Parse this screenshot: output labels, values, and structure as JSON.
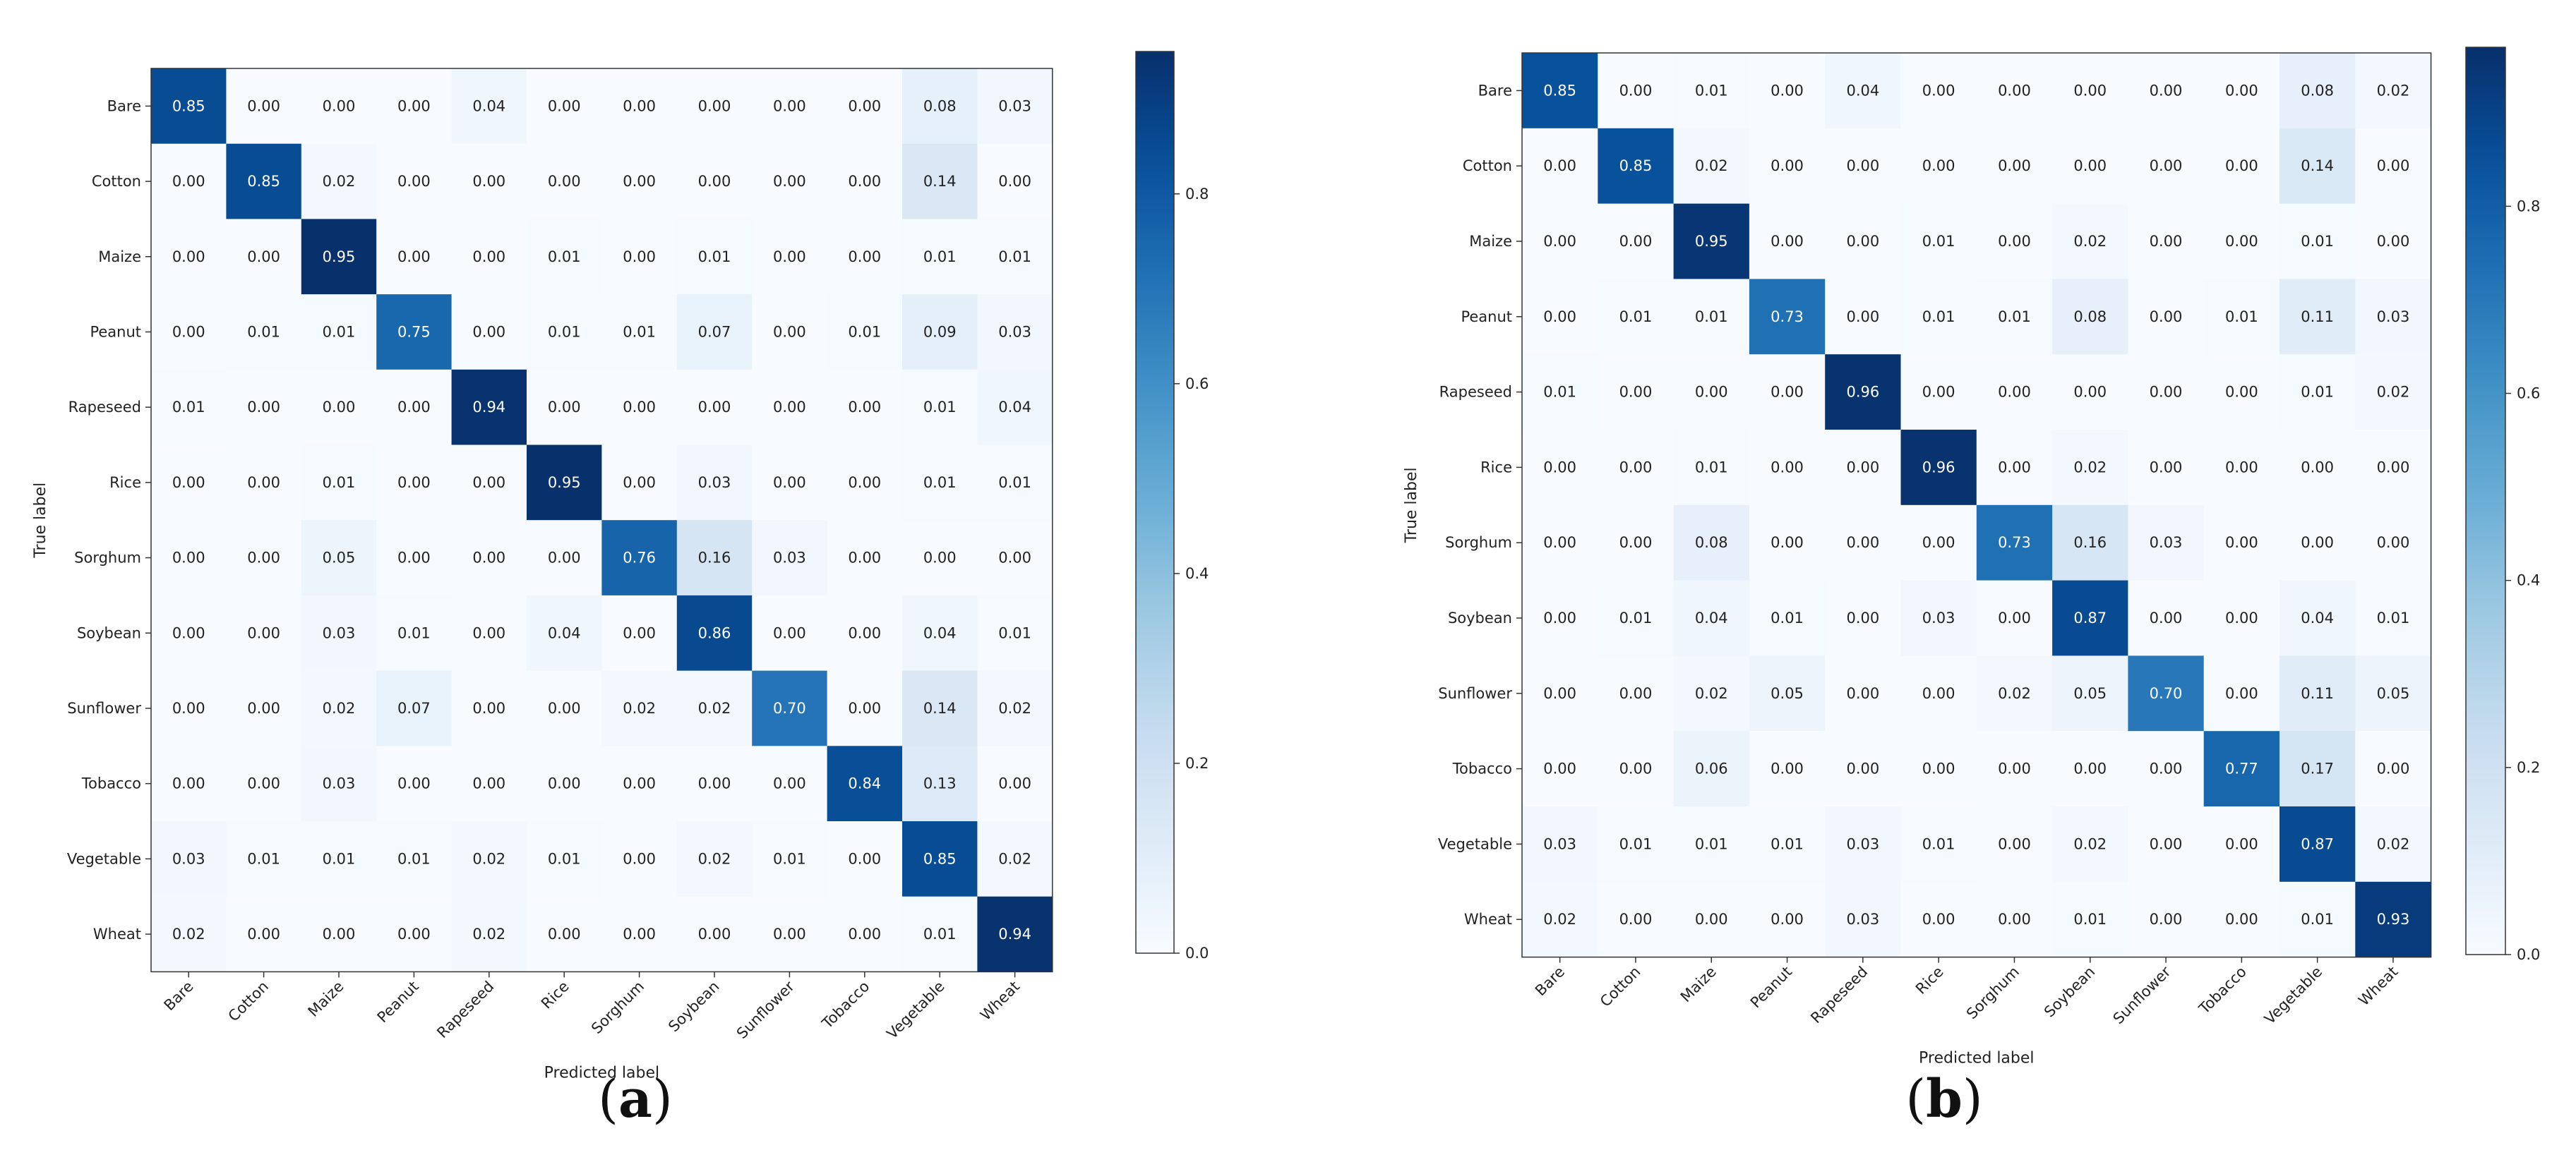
{
  "chart_data": [
    {
      "type": "heatmap",
      "panel_label": "(a)",
      "panel_letter": "a",
      "xlabel": "Predicted label",
      "ylabel": "True label",
      "categories": [
        "Bare",
        "Cotton",
        "Maize",
        "Peanut",
        "Rapeseed",
        "Rice",
        "Sorghum",
        "Soybean",
        "Sunflower",
        "Tobacco",
        "Vegetable",
        "Wheat"
      ],
      "matrix": [
        [
          0.85,
          0.0,
          0.0,
          0.0,
          0.04,
          0.0,
          0.0,
          0.0,
          0.0,
          0.0,
          0.08,
          0.03
        ],
        [
          0.0,
          0.85,
          0.02,
          0.0,
          0.0,
          0.0,
          0.0,
          0.0,
          0.0,
          0.0,
          0.14,
          0.0
        ],
        [
          0.0,
          0.0,
          0.95,
          0.0,
          0.0,
          0.01,
          0.0,
          0.01,
          0.0,
          0.0,
          0.01,
          0.01
        ],
        [
          0.0,
          0.01,
          0.01,
          0.75,
          0.0,
          0.01,
          0.01,
          0.07,
          0.0,
          0.01,
          0.09,
          0.03
        ],
        [
          0.01,
          0.0,
          0.0,
          0.0,
          0.94,
          0.0,
          0.0,
          0.0,
          0.0,
          0.0,
          0.01,
          0.04
        ],
        [
          0.0,
          0.0,
          0.01,
          0.0,
          0.0,
          0.95,
          0.0,
          0.03,
          0.0,
          0.0,
          0.01,
          0.01
        ],
        [
          0.0,
          0.0,
          0.05,
          0.0,
          0.0,
          0.0,
          0.76,
          0.16,
          0.03,
          0.0,
          0.0,
          0.0
        ],
        [
          0.0,
          0.0,
          0.03,
          0.01,
          0.0,
          0.04,
          0.0,
          0.86,
          0.0,
          0.0,
          0.04,
          0.01
        ],
        [
          0.0,
          0.0,
          0.02,
          0.07,
          0.0,
          0.0,
          0.02,
          0.02,
          0.7,
          0.0,
          0.14,
          0.02
        ],
        [
          0.0,
          0.0,
          0.03,
          0.0,
          0.0,
          0.0,
          0.0,
          0.0,
          0.0,
          0.84,
          0.13,
          0.0
        ],
        [
          0.03,
          0.01,
          0.01,
          0.01,
          0.02,
          0.01,
          0.0,
          0.02,
          0.01,
          0.0,
          0.85,
          0.02
        ],
        [
          0.02,
          0.0,
          0.0,
          0.0,
          0.02,
          0.0,
          0.0,
          0.0,
          0.0,
          0.0,
          0.01,
          0.94
        ]
      ],
      "colorbar": {
        "range": [
          0,
          0.95
        ],
        "ticks": [
          0.0,
          0.2,
          0.4,
          0.6,
          0.8
        ],
        "tick_labels": [
          "0.0",
          "0.2",
          "0.4",
          "0.6",
          "0.8"
        ],
        "colormap": "Blues"
      }
    },
    {
      "type": "heatmap",
      "panel_label": "(b)",
      "panel_letter": "b",
      "xlabel": "Predicted label",
      "ylabel": "True label",
      "categories": [
        "Bare",
        "Cotton",
        "Maize",
        "Peanut",
        "Rapeseed",
        "Rice",
        "Sorghum",
        "Soybean",
        "Sunflower",
        "Tobacco",
        "Vegetable",
        "Wheat"
      ],
      "matrix": [
        [
          0.85,
          0.0,
          0.01,
          0.0,
          0.04,
          0.0,
          0.0,
          0.0,
          0.0,
          0.0,
          0.08,
          0.02
        ],
        [
          0.0,
          0.85,
          0.02,
          0.0,
          0.0,
          0.0,
          0.0,
          0.0,
          0.0,
          0.0,
          0.14,
          0.0
        ],
        [
          0.0,
          0.0,
          0.95,
          0.0,
          0.0,
          0.01,
          0.0,
          0.02,
          0.0,
          0.0,
          0.01,
          0.0
        ],
        [
          0.0,
          0.01,
          0.01,
          0.73,
          0.0,
          0.01,
          0.01,
          0.08,
          0.0,
          0.01,
          0.11,
          0.03
        ],
        [
          0.01,
          0.0,
          0.0,
          0.0,
          0.96,
          0.0,
          0.0,
          0.0,
          0.0,
          0.0,
          0.01,
          0.02
        ],
        [
          0.0,
          0.0,
          0.01,
          0.0,
          0.0,
          0.96,
          0.0,
          0.02,
          0.0,
          0.0,
          0.0,
          0.0
        ],
        [
          0.0,
          0.0,
          0.08,
          0.0,
          0.0,
          0.0,
          0.73,
          0.16,
          0.03,
          0.0,
          0.0,
          0.0
        ],
        [
          0.0,
          0.01,
          0.04,
          0.01,
          0.0,
          0.03,
          0.0,
          0.87,
          0.0,
          0.0,
          0.04,
          0.01
        ],
        [
          0.0,
          0.0,
          0.02,
          0.05,
          0.0,
          0.0,
          0.02,
          0.05,
          0.7,
          0.0,
          0.11,
          0.05
        ],
        [
          0.0,
          0.0,
          0.06,
          0.0,
          0.0,
          0.0,
          0.0,
          0.0,
          0.0,
          0.77,
          0.17,
          0.0
        ],
        [
          0.03,
          0.01,
          0.01,
          0.01,
          0.03,
          0.01,
          0.0,
          0.02,
          0.0,
          0.0,
          0.87,
          0.02
        ],
        [
          0.02,
          0.0,
          0.0,
          0.0,
          0.03,
          0.0,
          0.0,
          0.01,
          0.0,
          0.0,
          0.01,
          0.93
        ]
      ],
      "colorbar": {
        "range": [
          0,
          0.97
        ],
        "ticks": [
          0.0,
          0.2,
          0.4,
          0.6,
          0.8
        ],
        "tick_labels": [
          "0.0",
          "0.2",
          "0.4",
          "0.6",
          "0.8"
        ],
        "colormap": "Blues"
      }
    }
  ]
}
